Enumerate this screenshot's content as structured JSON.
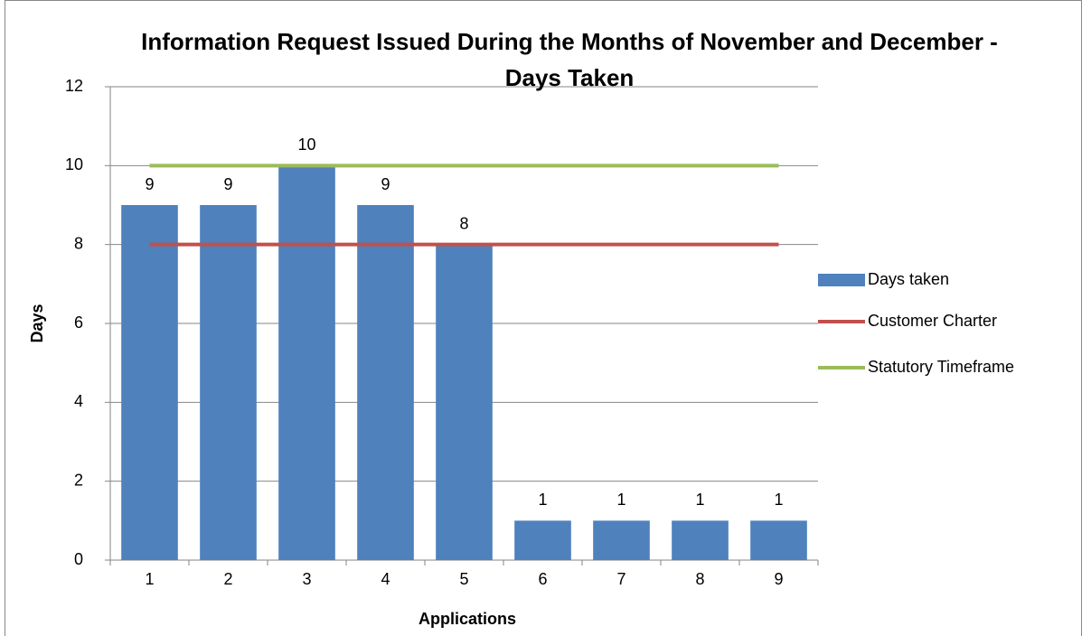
{
  "chart_data": {
    "type": "bar",
    "title": "Information Request Issued During the Months of November and December - Days Taken",
    "x_label": "Applications",
    "y_label": "Days",
    "categories": [
      "1",
      "2",
      "3",
      "4",
      "5",
      "6",
      "7",
      "8",
      "9"
    ],
    "series": [
      {
        "name": "Days taken",
        "type": "bar",
        "color": "#4f81bd",
        "values": [
          9,
          9,
          10,
          9,
          8,
          1,
          1,
          1,
          1
        ]
      },
      {
        "name": "Customer Charter",
        "type": "line",
        "color": "#c0504d",
        "values": [
          8,
          8,
          8,
          8,
          8,
          8,
          8,
          8,
          8
        ]
      },
      {
        "name": "Statutory Timeframe",
        "type": "line",
        "color": "#9bbb59",
        "values": [
          10,
          10,
          10,
          10,
          10,
          10,
          10,
          10,
          10
        ]
      }
    ],
    "ylim": [
      0,
      12
    ],
    "yticks": [
      0,
      2,
      4,
      6,
      8,
      10,
      12
    ],
    "grid": true,
    "legend": "right"
  }
}
